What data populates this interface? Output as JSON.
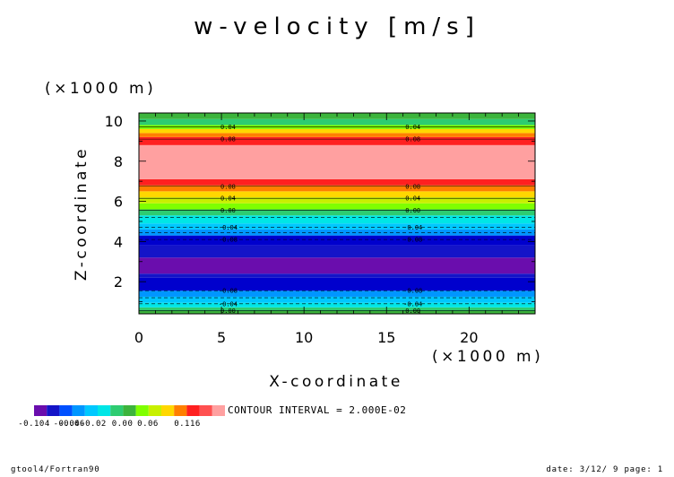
{
  "chart_data": {
    "type": "contour",
    "title": "w-velocity [m/s]",
    "xlabel": "X-coordinate",
    "ylabel": "Z-coordinate",
    "x_unit": "(×1000 m)",
    "y_unit": "(×1000 m)",
    "xlim": [
      0,
      24
    ],
    "ylim": [
      0.4,
      10.4
    ],
    "x_ticks": [
      "0",
      "5",
      "10",
      "15",
      "20"
    ],
    "y_ticks": [
      "2",
      "4",
      "6",
      "8",
      "10"
    ],
    "contour_interval": "CONTOUR INTERVAL = 2.000E-02",
    "bands": [
      {
        "z0": 0.4,
        "z1": 0.55,
        "color": "#3cb43c"
      },
      {
        "z0": 0.55,
        "z1": 0.72,
        "color": "#2ecc71"
      },
      {
        "z0": 0.72,
        "z1": 0.95,
        "color": "#00e6e6"
      },
      {
        "z0": 0.95,
        "z1": 1.25,
        "color": "#00c8ff"
      },
      {
        "z0": 1.25,
        "z1": 1.55,
        "color": "#0096ff"
      },
      {
        "z0": 1.55,
        "z1": 2.2,
        "color": "#0000cd"
      },
      {
        "z0": 2.2,
        "z1": 2.4,
        "color": "#1414c8"
      },
      {
        "z0": 2.4,
        "z1": 3.2,
        "color": "#6a0dad"
      },
      {
        "z0": 3.2,
        "z1": 3.8,
        "color": "#1414c8"
      },
      {
        "z0": 3.8,
        "z1": 4.3,
        "color": "#0000cd"
      },
      {
        "z0": 4.3,
        "z1": 4.6,
        "color": "#0096ff"
      },
      {
        "z0": 4.6,
        "z1": 4.9,
        "color": "#00c8ff"
      },
      {
        "z0": 4.9,
        "z1": 5.3,
        "color": "#00e6e6"
      },
      {
        "z0": 5.3,
        "z1": 5.6,
        "color": "#2ecc71"
      },
      {
        "z0": 5.6,
        "z1": 5.9,
        "color": "#7fff00"
      },
      {
        "z0": 5.9,
        "z1": 6.2,
        "color": "#c8f000"
      },
      {
        "z0": 6.2,
        "z1": 6.5,
        "color": "#ffd700"
      },
      {
        "z0": 6.5,
        "z1": 6.8,
        "color": "#ff7f00"
      },
      {
        "z0": 6.8,
        "z1": 7.1,
        "color": "#ff2020"
      },
      {
        "z0": 7.1,
        "z1": 8.8,
        "color": "#ffa0a0"
      },
      {
        "z0": 8.8,
        "z1": 9.2,
        "color": "#ff2020"
      },
      {
        "z0": 9.2,
        "z1": 9.4,
        "color": "#ff7f00"
      },
      {
        "z0": 9.4,
        "z1": 9.6,
        "color": "#ffd700"
      },
      {
        "z0": 9.6,
        "z1": 9.8,
        "color": "#7fff00"
      },
      {
        "z0": 9.8,
        "z1": 10.1,
        "color": "#2ecc71"
      },
      {
        "z0": 10.1,
        "z1": 10.4,
        "color": "#3cb43c"
      }
    ],
    "contour_lines": [
      {
        "z": 0.55,
        "label": "0.00",
        "dashed": false
      },
      {
        "z": 0.9,
        "label": "-0.04",
        "dashed": true
      },
      {
        "z": 1.2,
        "label": "",
        "dashed": true
      },
      {
        "z": 1.55,
        "label": "-0.08",
        "dashed": true
      },
      {
        "z": 4.1,
        "label": "-0.08",
        "dashed": true
      },
      {
        "z": 4.45,
        "label": "",
        "dashed": true
      },
      {
        "z": 4.7,
        "label": "-0.04",
        "dashed": true
      },
      {
        "z": 5.2,
        "label": "",
        "dashed": true
      },
      {
        "z": 5.55,
        "label": "0.00",
        "dashed": false
      },
      {
        "z": 6.15,
        "label": "0.04",
        "dashed": false
      },
      {
        "z": 6.75,
        "label": "0.08",
        "dashed": false
      },
      {
        "z": 9.1,
        "label": "0.08",
        "dashed": false
      },
      {
        "z": 9.7,
        "label": "0.04",
        "dashed": false
      }
    ],
    "label_x": [
      5.4,
      16.6
    ],
    "colorbar": {
      "colors": [
        "#6a0dad",
        "#1414c8",
        "#0050ff",
        "#0096ff",
        "#00c8ff",
        "#00e6e6",
        "#2ecc71",
        "#3cb43c",
        "#7fff00",
        "#c8f000",
        "#ffd700",
        "#ff7f00",
        "#ff2020",
        "#ff5050",
        "#ffa0a0"
      ],
      "min_label": "-0.104",
      "mid_label": "-0.06  ",
      "overlap_labels": "-0.04-0.02 0.00",
      "label_06": "0.06",
      "max_label": "0.116"
    }
  },
  "footer": {
    "left": "gtool4/Fortran90",
    "right": "date: 3/12/ 9 page: 1"
  }
}
